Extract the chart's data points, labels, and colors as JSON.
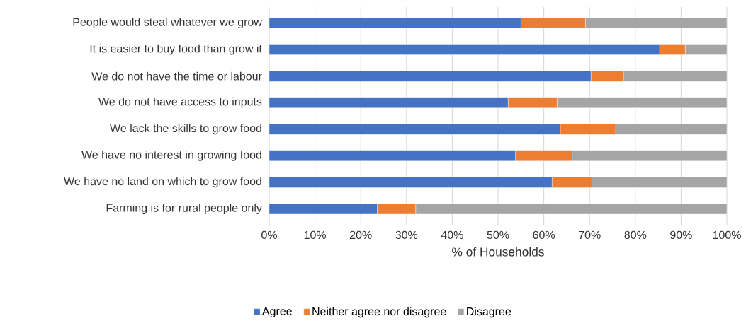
{
  "chart_data": {
    "type": "bar",
    "orientation": "horizontal",
    "stacked": true,
    "xlabel": "% of Households",
    "categories": [
      "People would steal whatever we grow",
      "It is easier to buy food than grow it",
      "We do not have the time or labour",
      "We do not have access to inputs",
      "We lack the skills to grow food",
      "We have no interest in growing food",
      "We have no land on which to grow food",
      "Farming is for rural people only"
    ],
    "series": [
      {
        "name": "Agree",
        "color": "#4472c4",
        "values": [
          55.0,
          85.3,
          70.3,
          52.2,
          63.6,
          53.8,
          61.8,
          23.6
        ]
      },
      {
        "name": "Neither agree nor disagree",
        "color": "#ed7d31",
        "values": [
          14.1,
          5.6,
          7.1,
          10.7,
          12.1,
          12.4,
          8.7,
          8.4
        ]
      },
      {
        "name": "Disagree",
        "color": "#a5a5a5",
        "values": [
          30.9,
          9.1,
          22.6,
          37.1,
          24.3,
          33.8,
          29.5,
          68.0
        ]
      }
    ],
    "xlim": [
      0,
      100
    ],
    "xticks": [
      {
        "value": 0,
        "label": "0%"
      },
      {
        "value": 10,
        "label": "10%"
      },
      {
        "value": 20,
        "label": "20%"
      },
      {
        "value": 30,
        "label": "30%"
      },
      {
        "value": 40,
        "label": "40%"
      },
      {
        "value": 50,
        "label": "50%"
      },
      {
        "value": 60,
        "label": "60%"
      },
      {
        "value": 70,
        "label": "70%"
      },
      {
        "value": 80,
        "label": "80%"
      },
      {
        "value": 90,
        "label": "90%"
      },
      {
        "value": 100,
        "label": "100%"
      }
    ],
    "grid": "x",
    "legend": "bottom"
  }
}
